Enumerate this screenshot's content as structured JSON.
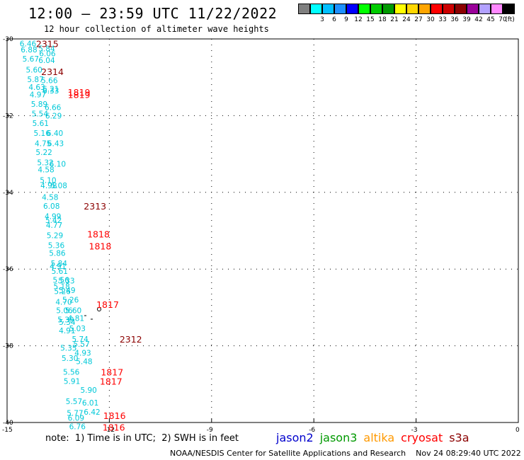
{
  "header": {
    "title": "12:00 – 23:59 UTC 11/22/2022",
    "subtitle": "12 hour collection of altimeter wave heights"
  },
  "color_scale": {
    "unit": "(ft)",
    "swatches": [
      {
        "color": "#7f7f7f",
        "label": ""
      },
      {
        "color": "#00ffff",
        "label": "3"
      },
      {
        "color": "#00bfff",
        "label": "6"
      },
      {
        "color": "#1e90ff",
        "label": "9"
      },
      {
        "color": "#0000ff",
        "label": "12"
      },
      {
        "color": "#00ff00",
        "label": "15"
      },
      {
        "color": "#00cc00",
        "label": "18"
      },
      {
        "color": "#009900",
        "label": "21"
      },
      {
        "color": "#ffff00",
        "label": "24"
      },
      {
        "color": "#ffd700",
        "label": "27"
      },
      {
        "color": "#ffa500",
        "label": "30"
      },
      {
        "color": "#ff0000",
        "label": "33"
      },
      {
        "color": "#cc0000",
        "label": "36"
      },
      {
        "color": "#8b0000",
        "label": "39"
      },
      {
        "color": "#990099",
        "label": "42"
      },
      {
        "color": "#b2a1ff",
        "label": "45"
      },
      {
        "color": "#ff88ff",
        "label": "70"
      },
      {
        "color": "#000000",
        "label": ""
      }
    ]
  },
  "map": {
    "lat_labels": [
      "-30",
      "-32",
      "-34",
      "-36",
      "-38",
      "-40"
    ],
    "lon_labels": [
      "-15",
      "-12",
      "-9",
      "-6",
      "-3",
      "0"
    ],
    "lat_range": [
      -40,
      -30
    ],
    "lon_range": [
      -15,
      0
    ]
  },
  "obs": [
    {
      "t": "6.46",
      "lat": -30.12,
      "lon": -14.63
    },
    {
      "t": "6.88",
      "lat": -30.28,
      "lon": -14.6
    },
    {
      "t": "5.84",
      "lat": -30.25,
      "lon": -14.08
    },
    {
      "t": "6.06",
      "lat": -30.38,
      "lon": -14.06
    },
    {
      "t": "5.67",
      "lat": -30.52,
      "lon": -14.55
    },
    {
      "t": "6.04",
      "lat": -30.55,
      "lon": -14.08
    },
    {
      "t": "5.60",
      "lat": -30.8,
      "lon": -14.45
    },
    {
      "t": "5.87",
      "lat": -31.05,
      "lon": -14.41
    },
    {
      "t": "5.66",
      "lat": -31.08,
      "lon": -14.0
    },
    {
      "t": "4.63",
      "lat": -31.25,
      "lon": -14.37
    },
    {
      "t": "6.21",
      "lat": -31.3,
      "lon": -13.96
    },
    {
      "t": "6.33",
      "lat": -31.35,
      "lon": -13.96
    },
    {
      "t": "4.97",
      "lat": -31.45,
      "lon": -14.34
    },
    {
      "t": "5.89",
      "lat": -31.7,
      "lon": -14.3
    },
    {
      "t": "6.66",
      "lat": -31.78,
      "lon": -13.9
    },
    {
      "t": "5.54",
      "lat": -31.95,
      "lon": -14.28
    },
    {
      "t": "6.29",
      "lat": -32.0,
      "lon": -13.88
    },
    {
      "t": "5.61",
      "lat": -32.2,
      "lon": -14.26
    },
    {
      "t": "5.16",
      "lat": -32.45,
      "lon": -14.22
    },
    {
      "t": "6.40",
      "lat": -32.45,
      "lon": -13.84
    },
    {
      "t": "4.75",
      "lat": -32.72,
      "lon": -14.19
    },
    {
      "t": "6.43",
      "lat": -32.72,
      "lon": -13.82
    },
    {
      "t": "5.22",
      "lat": -32.95,
      "lon": -14.16
    },
    {
      "t": "5.32",
      "lat": -33.22,
      "lon": -14.12
    },
    {
      "t": "6.10",
      "lat": -33.26,
      "lon": -13.76
    },
    {
      "t": "4.58",
      "lat": -33.4,
      "lon": -14.1
    },
    {
      "t": "5.10",
      "lat": -33.68,
      "lon": -14.04
    },
    {
      "t": "4.98",
      "lat": -33.82,
      "lon": -14.02
    },
    {
      "t": "5.08",
      "lat": -33.82,
      "lon": -13.72
    },
    {
      "t": "4.58",
      "lat": -34.12,
      "lon": -13.98
    },
    {
      "t": "6.08",
      "lat": -34.35,
      "lon": -13.94
    },
    {
      "t": "4.99",
      "lat": -34.62,
      "lon": -13.9
    },
    {
      "t": "5.42",
      "lat": -34.72,
      "lon": -13.88
    },
    {
      "t": "4.77",
      "lat": -34.85,
      "lon": -13.86
    },
    {
      "t": "5.29",
      "lat": -35.12,
      "lon": -13.84
    },
    {
      "t": "5.36",
      "lat": -35.38,
      "lon": -13.8
    },
    {
      "t": "5.86",
      "lat": -35.58,
      "lon": -13.77
    },
    {
      "t": "5.84",
      "lat": -35.85,
      "lon": -13.72
    },
    {
      "t": "4.91",
      "lat": -35.92,
      "lon": -13.75
    },
    {
      "t": "5.61",
      "lat": -36.05,
      "lon": -13.7
    },
    {
      "t": "5.56",
      "lat": -36.28,
      "lon": -13.66
    },
    {
      "t": "5.33",
      "lat": -36.3,
      "lon": -13.5
    },
    {
      "t": "5.18",
      "lat": -36.45,
      "lon": -13.64
    },
    {
      "t": "5.49",
      "lat": -36.55,
      "lon": -13.48
    },
    {
      "t": "5.26",
      "lat": -36.58,
      "lon": -13.62
    },
    {
      "t": "4.70",
      "lat": -36.85,
      "lon": -13.58
    },
    {
      "t": "5.26",
      "lat": -36.8,
      "lon": -13.38
    },
    {
      "t": "5.06",
      "lat": -37.08,
      "lon": -13.56
    },
    {
      "t": "5.60",
      "lat": -37.08,
      "lon": -13.3
    },
    {
      "t": "5.39",
      "lat": -37.32,
      "lon": -13.52
    },
    {
      "t": "4.81",
      "lat": -37.28,
      "lon": -13.22
    },
    {
      "t": "5.34",
      "lat": -37.38,
      "lon": -13.48
    },
    {
      "t": "5.03",
      "lat": -37.55,
      "lon": -13.18
    },
    {
      "t": "4.91",
      "lat": -37.6,
      "lon": -13.48
    },
    {
      "t": "5.74",
      "lat": -37.82,
      "lon": -13.1
    },
    {
      "t": "5.57",
      "lat": -37.95,
      "lon": -13.06
    },
    {
      "t": "5.35",
      "lat": -38.05,
      "lon": -13.44
    },
    {
      "t": "4.93",
      "lat": -38.18,
      "lon": -13.02
    },
    {
      "t": "5.30",
      "lat": -38.32,
      "lon": -13.4
    },
    {
      "t": "5.48",
      "lat": -38.4,
      "lon": -12.98
    },
    {
      "t": "5.56",
      "lat": -38.68,
      "lon": -13.36
    },
    {
      "t": "5.91",
      "lat": -38.92,
      "lon": -13.34
    },
    {
      "t": "5.90",
      "lat": -39.15,
      "lon": -12.85
    },
    {
      "t": "5.57",
      "lat": -39.45,
      "lon": -13.28
    },
    {
      "t": "6.01",
      "lat": -39.48,
      "lon": -12.8
    },
    {
      "t": "5.77",
      "lat": -39.75,
      "lon": -13.25
    },
    {
      "t": "6.42",
      "lat": -39.72,
      "lon": -12.75
    },
    {
      "t": "6.09",
      "lat": -39.88,
      "lon": -13.22
    },
    {
      "t": "6.76",
      "lat": -40.1,
      "lon": -13.18
    }
  ],
  "times": [
    {
      "t": "2315",
      "lat": -30.12,
      "lon": -14.15,
      "color": "#8b0000"
    },
    {
      "t": "2314",
      "lat": -30.85,
      "lon": -14.0,
      "color": "#8b0000"
    },
    {
      "t": "1819",
      "lat": -31.38,
      "lon": -13.22,
      "color": "#ff0000"
    },
    {
      "t": "1819",
      "lat": -31.45,
      "lon": -13.22,
      "color": "#ff0000"
    },
    {
      "t": "2313",
      "lat": -34.35,
      "lon": -12.75,
      "color": "#8b0000"
    },
    {
      "t": "1818",
      "lat": -35.08,
      "lon": -12.65,
      "color": "#ff0000"
    },
    {
      "t": "1818",
      "lat": -35.4,
      "lon": -12.6,
      "color": "#ff0000"
    },
    {
      "t": "1817",
      "lat": -36.92,
      "lon": -12.38,
      "color": "#ff0000"
    },
    {
      "t": "2312",
      "lat": -37.82,
      "lon": -11.7,
      "color": "#8b0000"
    },
    {
      "t": "1817",
      "lat": -38.68,
      "lon": -12.25,
      "color": "#ff0000"
    },
    {
      "t": "1817",
      "lat": -38.92,
      "lon": -12.28,
      "color": "#ff0000"
    },
    {
      "t": "1816",
      "lat": -39.82,
      "lon": -12.18,
      "color": "#ff0000"
    },
    {
      "t": "1816",
      "lat": -40.12,
      "lon": -12.2,
      "color": "#ff0000"
    }
  ],
  "footer": {
    "note": "note:  1) Time is in UTC;  2) SWH is in feet",
    "legend": [
      {
        "label": "jason2",
        "color": "#0000cc"
      },
      {
        "label": "jason3",
        "color": "#009900"
      },
      {
        "label": "altika",
        "color": "#ff9900"
      },
      {
        "label": "cryosat",
        "color": "#ff0000"
      },
      {
        "label": "s3a",
        "color": "#8b0000"
      }
    ],
    "credit": "NOAA/NESDIS Center for Satellite Applications and Research    Nov 24 08:29:40 UTC 2022"
  }
}
